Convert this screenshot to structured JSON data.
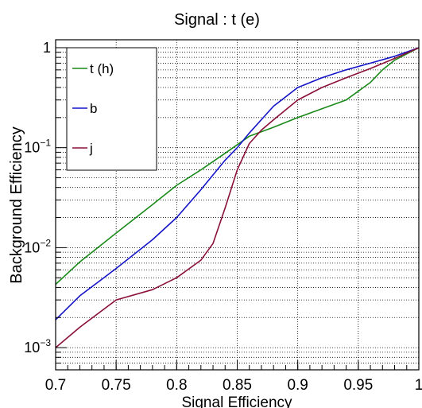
{
  "chart_data": {
    "type": "line",
    "title": "Signal : t (e)",
    "xlabel": "Signal Efficiency",
    "ylabel": "Background Efficiency",
    "xlim": [
      0.7,
      1.0
    ],
    "ylim": [
      0.0006,
      1.2
    ],
    "yscale": "log",
    "grid": true,
    "legend_position": "top-left",
    "x_ticks": [
      {
        "value": 0.7,
        "label": "0.7"
      },
      {
        "value": 0.75,
        "label": "0.75"
      },
      {
        "value": 0.8,
        "label": "0.8"
      },
      {
        "value": 0.85,
        "label": "0.85"
      },
      {
        "value": 0.9,
        "label": "0.9"
      },
      {
        "value": 0.95,
        "label": "0.95"
      },
      {
        "value": 1.0,
        "label": "1"
      }
    ],
    "y_ticks": [
      {
        "value": 0.001,
        "base": "10",
        "exp": "−3"
      },
      {
        "value": 0.01,
        "base": "10",
        "exp": "−2"
      },
      {
        "value": 0.1,
        "base": "10",
        "exp": "−1"
      },
      {
        "value": 1,
        "base": "1",
        "exp": ""
      }
    ],
    "series": [
      {
        "name": "t (h)",
        "color": "#1a8a1a",
        "x": [
          0.7,
          0.72,
          0.75,
          0.78,
          0.8,
          0.82,
          0.84,
          0.86,
          0.88,
          0.9,
          0.92,
          0.94,
          0.96,
          0.97,
          0.98,
          1.0
        ],
        "y": [
          0.0043,
          0.0072,
          0.014,
          0.027,
          0.042,
          0.06,
          0.088,
          0.13,
          0.16,
          0.2,
          0.245,
          0.3,
          0.45,
          0.6,
          0.75,
          1.0
        ]
      },
      {
        "name": "b",
        "color": "#1414c8",
        "x": [
          0.7,
          0.72,
          0.75,
          0.78,
          0.8,
          0.82,
          0.84,
          0.85,
          0.86,
          0.88,
          0.9,
          0.92,
          0.94,
          0.96,
          0.98,
          1.0
        ],
        "y": [
          0.0019,
          0.0033,
          0.0062,
          0.012,
          0.02,
          0.038,
          0.075,
          0.1,
          0.14,
          0.26,
          0.4,
          0.5,
          0.6,
          0.7,
          0.82,
          1.0
        ]
      },
      {
        "name": "j",
        "color": "#8a1038",
        "x": [
          0.7,
          0.72,
          0.75,
          0.78,
          0.8,
          0.82,
          0.83,
          0.84,
          0.85,
          0.86,
          0.87,
          0.88,
          0.9,
          0.92,
          0.94,
          0.96,
          0.98,
          1.0
        ],
        "y": [
          0.001,
          0.0016,
          0.003,
          0.0038,
          0.005,
          0.0075,
          0.011,
          0.025,
          0.06,
          0.11,
          0.15,
          0.19,
          0.3,
          0.4,
          0.5,
          0.62,
          0.78,
          1.0
        ]
      }
    ]
  }
}
